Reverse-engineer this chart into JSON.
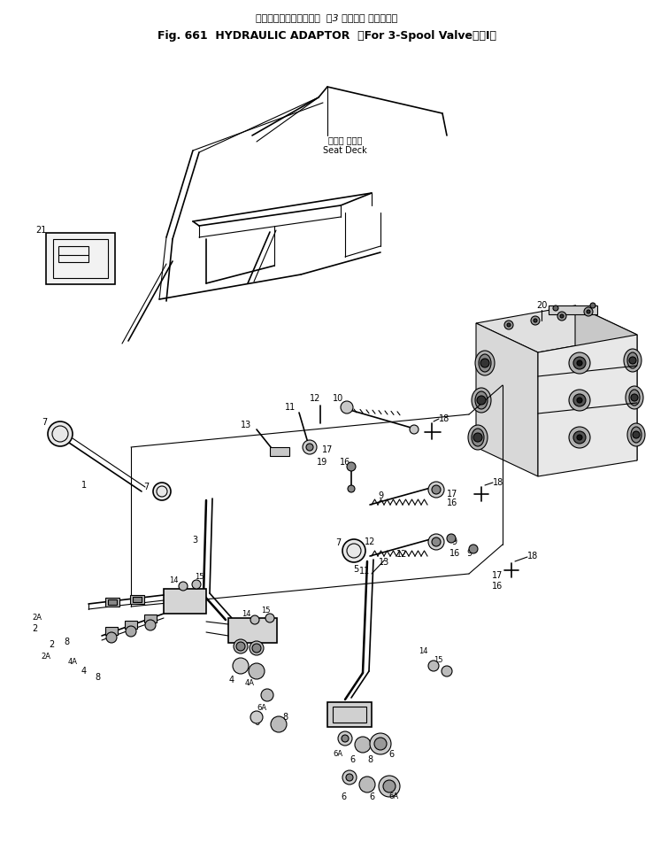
{
  "title_line1": "ハイドロリックアダプタ  （3 スプール バルブ用）",
  "title_line2": "Fig. 661  HYDRAULIC ADAPTOR  （For 3-Spool Valve）（I）",
  "bg_color": "#ffffff",
  "fg_color": "#000000",
  "seat_deck_jp": "シート デッキ",
  "seat_deck_en": "Seat Deck",
  "fig_width": 7.38,
  "fig_height": 9.69,
  "dpi": 100
}
